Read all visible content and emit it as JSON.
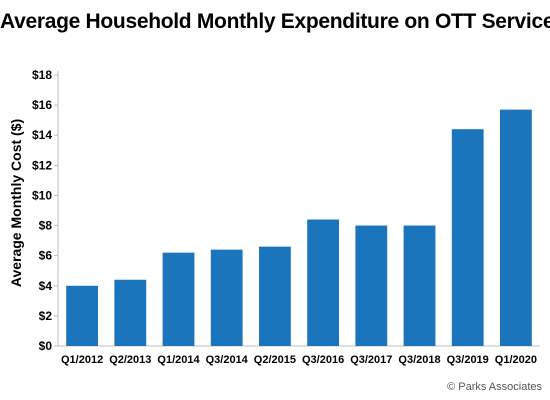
{
  "chart_data": {
    "type": "bar",
    "title": "Average Household Monthly Expenditure on OTT Services",
    "xlabel": "",
    "ylabel": "Average Monthly Cost ($)",
    "categories": [
      "Q1/2012",
      "Q2/2013",
      "Q1/2014",
      "Q3/2014",
      "Q2/2015",
      "Q3/2016",
      "Q3/2017",
      "Q3/2018",
      "Q3/2019",
      "Q1/2020"
    ],
    "values": [
      4.0,
      4.4,
      6.2,
      6.4,
      6.6,
      8.4,
      8.0,
      8.0,
      14.4,
      15.7
    ],
    "ylim": [
      0,
      18
    ],
    "yticks": [
      0,
      2,
      4,
      6,
      8,
      10,
      12,
      14,
      16,
      18
    ],
    "ytick_labels": [
      "$0",
      "$2",
      "$4",
      "$6",
      "$8",
      "$10",
      "$12",
      "$14",
      "$16",
      "$18"
    ],
    "grid": false,
    "bar_color": "#1a75bc"
  },
  "credit": "© Parks Associates"
}
